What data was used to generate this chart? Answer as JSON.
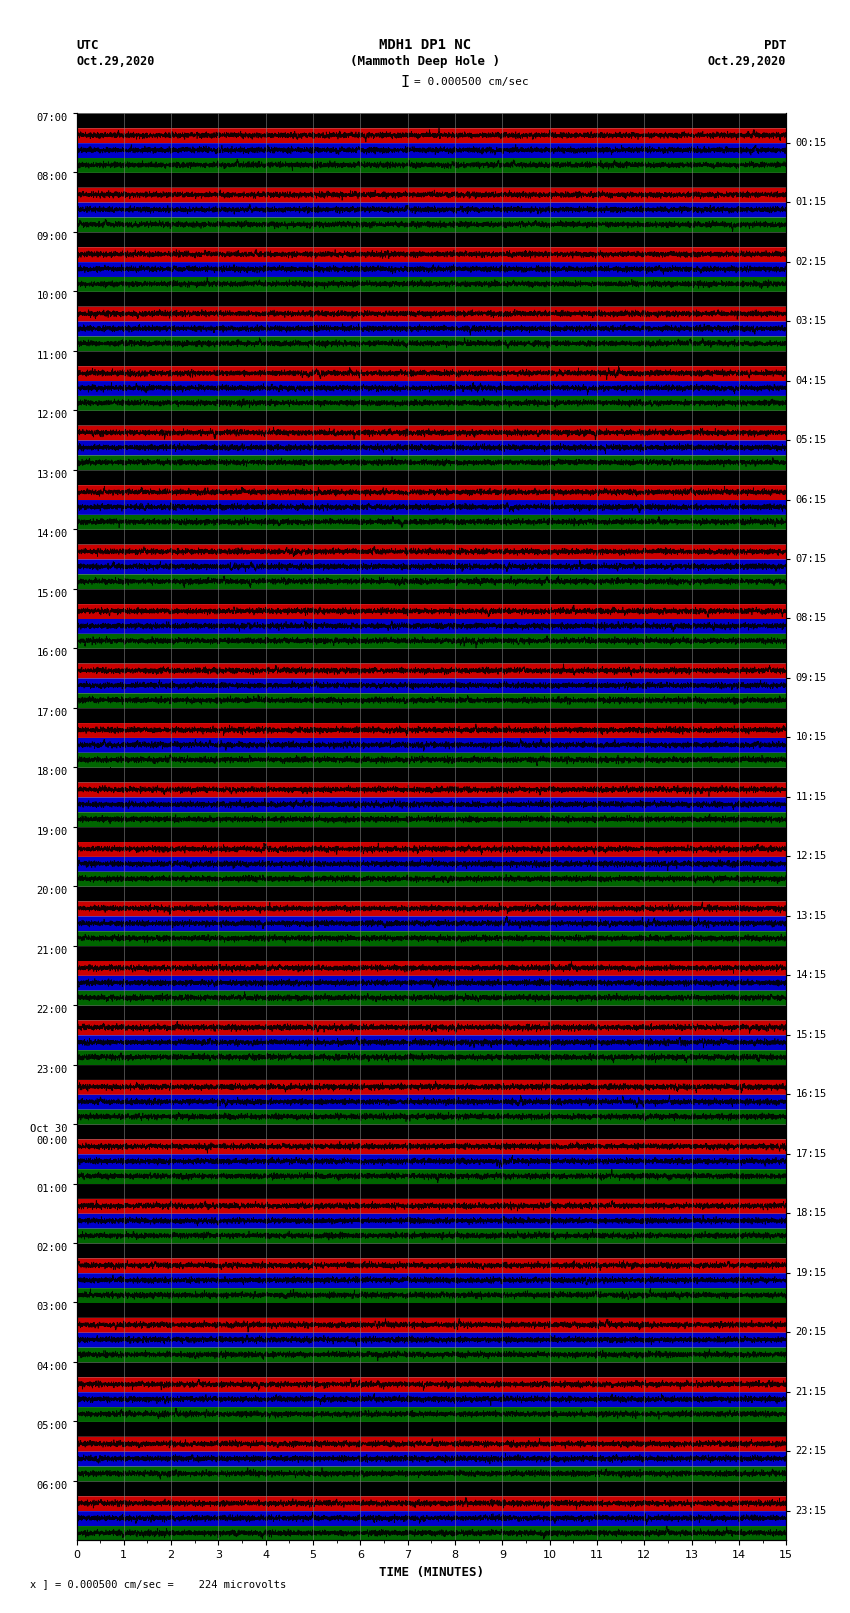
{
  "title_line1": "MDH1 DP1 NC",
  "title_line2": "(Mammoth Deep Hole )",
  "title_line3": "I = 0.000500 cm/sec",
  "utc_label": "UTC",
  "pdt_label": "PDT",
  "utc_date": "Oct.29,2020",
  "pdt_date": "Oct.29,2020",
  "xlabel": "TIME (MINUTES)",
  "footer": "x ] = 0.000500 cm/sec =    224 microvolts",
  "xmin": 0,
  "xmax": 15,
  "background_color": "#ffffff",
  "band_colors_per_row": [
    "#000000",
    "#cc0000",
    "#0000cc",
    "#006600"
  ],
  "left_times": [
    "07:00",
    "08:00",
    "09:00",
    "10:00",
    "11:00",
    "12:00",
    "13:00",
    "14:00",
    "15:00",
    "16:00",
    "17:00",
    "18:00",
    "19:00",
    "20:00",
    "21:00",
    "22:00",
    "23:00",
    "Oct 30\n00:00",
    "01:00",
    "02:00",
    "03:00",
    "04:00",
    "05:00",
    "06:00"
  ],
  "right_times": [
    "00:15",
    "01:15",
    "02:15",
    "03:15",
    "04:15",
    "05:15",
    "06:15",
    "07:15",
    "08:15",
    "09:15",
    "10:15",
    "11:15",
    "12:15",
    "13:15",
    "14:15",
    "15:15",
    "16:15",
    "17:15",
    "18:15",
    "19:15",
    "20:15",
    "21:15",
    "22:15",
    "23:15"
  ],
  "num_rows": 24,
  "traces_per_row": 4,
  "figwidth": 8.5,
  "figheight": 16.13,
  "noise_scale": 0.28,
  "signal_lw": 0.5
}
